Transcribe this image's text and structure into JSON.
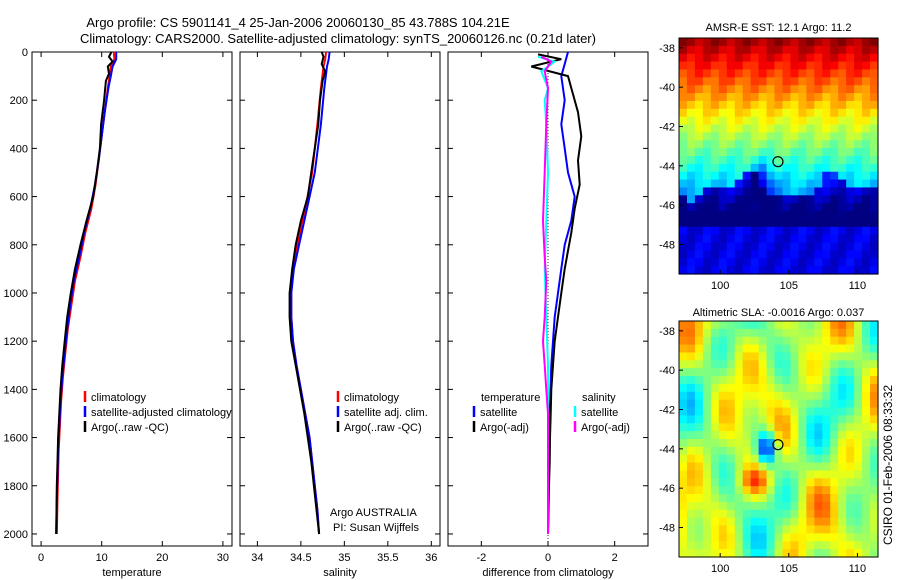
{
  "title_line1": "Argo profile: CS 5901141_4 25-Jan-2006 20060130_85 43.788S 104.21E",
  "title_line2": "Climatology: CARS2000. Satellite-adjusted climatology: synTS_20060126.nc (0.21d later)",
  "side_stamp": "CSIRO 01-Feb-2006 08:33:32",
  "colors": {
    "red": "#ff0000",
    "blue": "#0000ff",
    "black": "#000000",
    "cyan": "#00ffff",
    "magenta": "#ff00ff",
    "navy": "#000090"
  },
  "chart_data": [
    {
      "type": "line",
      "id": "temperature",
      "xlabel": "temperature",
      "xlim": [
        -1.5,
        31.5
      ],
      "xticks": [
        0,
        10,
        20,
        30
      ],
      "ylim": [
        0,
        2050
      ],
      "yticks": [
        0,
        200,
        400,
        600,
        800,
        1000,
        1200,
        1400,
        1600,
        1800,
        2000
      ],
      "y_reversed": true,
      "legend_position": "lower-left",
      "legend": [
        {
          "label": "climatology",
          "color": "#ff0000"
        },
        {
          "label": "satellite-adjusted climatology",
          "color": "#0000ff"
        },
        {
          "label": "Argo(..raw -QC)",
          "color": "#000000"
        }
      ],
      "series": [
        {
          "name": "climatology",
          "color": "#ff0000",
          "points": [
            [
              12.0,
              0
            ],
            [
              12.1,
              30
            ],
            [
              11.5,
              60
            ],
            [
              11.3,
              100
            ],
            [
              11.0,
              150
            ],
            [
              10.5,
              250
            ],
            [
              10.0,
              350
            ],
            [
              9.5,
              450
            ],
            [
              9.0,
              550
            ],
            [
              8.3,
              650
            ],
            [
              7.3,
              750
            ],
            [
              6.5,
              850
            ],
            [
              5.6,
              950
            ],
            [
              5.0,
              1050
            ],
            [
              4.4,
              1150
            ],
            [
              4.0,
              1250
            ],
            [
              3.6,
              1350
            ],
            [
              3.3,
              1450
            ],
            [
              3.1,
              1550
            ],
            [
              2.9,
              1650
            ],
            [
              2.8,
              1750
            ],
            [
              2.7,
              1850
            ],
            [
              2.6,
              2000
            ]
          ]
        },
        {
          "name": "satellite-adjusted climatology",
          "color": "#0000ff",
          "points": [
            [
              12.4,
              0
            ],
            [
              12.4,
              30
            ],
            [
              11.8,
              60
            ],
            [
              11.5,
              100
            ],
            [
              11.1,
              150
            ],
            [
              10.5,
              250
            ],
            [
              10.0,
              350
            ],
            [
              9.5,
              450
            ],
            [
              8.9,
              550
            ],
            [
              8.1,
              650
            ],
            [
              7.1,
              750
            ],
            [
              6.3,
              850
            ],
            [
              5.4,
              950
            ],
            [
              4.8,
              1050
            ],
            [
              4.3,
              1150
            ],
            [
              3.9,
              1250
            ],
            [
              3.5,
              1350
            ],
            [
              3.2,
              1450
            ],
            [
              3.0,
              1550
            ],
            [
              2.8,
              1650
            ],
            [
              2.7,
              1750
            ],
            [
              2.6,
              1850
            ],
            [
              2.5,
              2000
            ]
          ]
        },
        {
          "name": "Argo(..raw -QC)",
          "color": "#000000",
          "points": [
            [
              11.6,
              0
            ],
            [
              11.2,
              20
            ],
            [
              11.8,
              40
            ],
            [
              11.0,
              60
            ],
            [
              11.2,
              90
            ],
            [
              10.7,
              120
            ],
            [
              10.4,
              200
            ],
            [
              9.9,
              300
            ],
            [
              9.7,
              400
            ],
            [
              9.2,
              500
            ],
            [
              8.6,
              600
            ],
            [
              7.5,
              700
            ],
            [
              6.5,
              800
            ],
            [
              5.6,
              900
            ],
            [
              4.9,
              1000
            ],
            [
              4.3,
              1100
            ],
            [
              3.9,
              1200
            ],
            [
              3.5,
              1300
            ],
            [
              3.2,
              1400
            ],
            [
              3.0,
              1500
            ],
            [
              2.8,
              1600
            ],
            [
              2.7,
              1700
            ],
            [
              2.6,
              1800
            ],
            [
              2.5,
              2000
            ]
          ]
        }
      ]
    },
    {
      "type": "line",
      "id": "salinity",
      "xlabel": "salinity",
      "xlim": [
        33.8,
        36.1
      ],
      "xticks": [
        34,
        34.5,
        35,
        35.5,
        36
      ],
      "ylim": [
        0,
        2050
      ],
      "y_reversed": true,
      "legend_position": "lower-right",
      "legend": [
        {
          "label": "climatology",
          "color": "#ff0000"
        },
        {
          "label": "satellite adj. clim.",
          "color": "#0000ff"
        },
        {
          "label": "Argo(..raw -QC)",
          "color": "#000000"
        }
      ],
      "annotation_line1": "Argo AUSTRALIA",
      "annotation_line2": "PI: Susan Wijffels",
      "series": [
        {
          "name": "climatology",
          "color": "#ff0000",
          "points": [
            [
              34.79,
              0
            ],
            [
              34.78,
              30
            ],
            [
              34.76,
              60
            ],
            [
              34.73,
              150
            ],
            [
              34.69,
              300
            ],
            [
              34.63,
              500
            ],
            [
              34.55,
              650
            ],
            [
              34.46,
              800
            ],
            [
              34.41,
              900
            ],
            [
              34.39,
              1000
            ],
            [
              34.39,
              1100
            ],
            [
              34.41,
              1200
            ],
            [
              34.45,
              1300
            ],
            [
              34.5,
              1400
            ],
            [
              34.55,
              1500
            ],
            [
              34.6,
              1600
            ],
            [
              34.63,
              1700
            ],
            [
              34.66,
              1800
            ],
            [
              34.69,
              1900
            ],
            [
              34.71,
              2000
            ]
          ]
        },
        {
          "name": "satellite adj. clim.",
          "color": "#0000ff",
          "points": [
            [
              34.83,
              0
            ],
            [
              34.82,
              30
            ],
            [
              34.8,
              60
            ],
            [
              34.77,
              150
            ],
            [
              34.73,
              300
            ],
            [
              34.66,
              500
            ],
            [
              34.57,
              650
            ],
            [
              34.48,
              800
            ],
            [
              34.42,
              900
            ],
            [
              34.39,
              1000
            ],
            [
              34.39,
              1100
            ],
            [
              34.41,
              1200
            ],
            [
              34.45,
              1300
            ],
            [
              34.5,
              1400
            ],
            [
              34.55,
              1500
            ],
            [
              34.6,
              1600
            ],
            [
              34.63,
              1700
            ],
            [
              34.66,
              1800
            ],
            [
              34.69,
              1900
            ],
            [
              34.71,
              2000
            ]
          ]
        },
        {
          "name": "Argo(..raw -QC)",
          "color": "#000000",
          "points": [
            [
              34.74,
              0
            ],
            [
              34.76,
              20
            ],
            [
              34.74,
              50
            ],
            [
              34.78,
              80
            ],
            [
              34.75,
              120
            ],
            [
              34.72,
              200
            ],
            [
              34.7,
              300
            ],
            [
              34.64,
              450
            ],
            [
              34.58,
              600
            ],
            [
              34.5,
              700
            ],
            [
              34.44,
              800
            ],
            [
              34.4,
              900
            ],
            [
              34.37,
              1000
            ],
            [
              34.37,
              1100
            ],
            [
              34.39,
              1200
            ],
            [
              34.44,
              1300
            ],
            [
              34.49,
              1400
            ],
            [
              34.54,
              1500
            ],
            [
              34.58,
              1600
            ],
            [
              34.62,
              1700
            ],
            [
              34.65,
              1800
            ],
            [
              34.68,
              1900
            ],
            [
              34.71,
              2000
            ]
          ]
        }
      ]
    },
    {
      "type": "line",
      "id": "difference",
      "xlabel": "difference from climatology",
      "xlim": [
        -3.0,
        3.0
      ],
      "xticks": [
        -2,
        0,
        2
      ],
      "ylim": [
        0,
        2050
      ],
      "y_reversed": true,
      "legend_position": "lower-center",
      "legend_headers": [
        "temperature",
        "salinity"
      ],
      "legend": [
        {
          "label": "satellite",
          "color": "#0000ff",
          "column": 0
        },
        {
          "label": "Argo(-adj)",
          "color": "#000000",
          "column": 0
        },
        {
          "label": "satellite",
          "color": "#00ffff",
          "column": 1
        },
        {
          "label": "Argo(-adj)",
          "color": "#ff00ff",
          "column": 1
        }
      ],
      "series": [
        {
          "name": "temperature satellite",
          "color": "#0000ff",
          "points": [
            [
              0.6,
              0
            ],
            [
              0.5,
              50
            ],
            [
              0.4,
              100
            ],
            [
              0.5,
              200
            ],
            [
              0.4,
              300
            ],
            [
              0.5,
              400
            ],
            [
              0.6,
              500
            ],
            [
              0.8,
              600
            ],
            [
              0.7,
              700
            ],
            [
              0.5,
              800
            ],
            [
              0.4,
              900
            ],
            [
              0.3,
              1000
            ],
            [
              0.2,
              1100
            ],
            [
              0.15,
              1200
            ],
            [
              0.1,
              1300
            ],
            [
              0.05,
              1500
            ],
            [
              0.03,
              1700
            ],
            [
              0.0,
              2000
            ]
          ]
        },
        {
          "name": "temperature Argo(-adj)",
          "color": "#000000",
          "points": [
            [
              -0.3,
              10
            ],
            [
              0.4,
              30
            ],
            [
              -0.5,
              60
            ],
            [
              0.6,
              100
            ],
            [
              0.7,
              150
            ],
            [
              0.9,
              250
            ],
            [
              1.0,
              350
            ],
            [
              0.9,
              450
            ],
            [
              0.95,
              550
            ],
            [
              0.8,
              650
            ],
            [
              0.7,
              750
            ],
            [
              0.5,
              900
            ],
            [
              0.4,
              1000
            ],
            [
              0.3,
              1100
            ],
            [
              0.2,
              1200
            ],
            [
              0.15,
              1300
            ],
            [
              0.1,
              1400
            ],
            [
              0.08,
              1500
            ],
            [
              0.06,
              1600
            ],
            [
              0.05,
              1700
            ],
            [
              0.03,
              1800
            ],
            [
              0.0,
              2000
            ]
          ]
        },
        {
          "name": "salinity satellite",
          "color": "#00ffff",
          "points": [
            [
              -0.3,
              20
            ],
            [
              0.2,
              40
            ],
            [
              -0.2,
              80
            ],
            [
              0.0,
              150
            ],
            [
              -0.1,
              200
            ],
            [
              -0.05,
              300
            ],
            [
              0.0,
              500
            ],
            [
              -0.05,
              700
            ],
            [
              -0.1,
              900
            ],
            [
              -0.05,
              1100
            ],
            [
              0.0,
              1300
            ],
            [
              0.0,
              1500
            ],
            [
              0.0,
              1700
            ],
            [
              0.0,
              2000
            ]
          ]
        },
        {
          "name": "salinity Argo(-adj)",
          "color": "#ff00ff",
          "points": [
            [
              -0.2,
              20
            ],
            [
              0.1,
              40
            ],
            [
              -0.1,
              80
            ],
            [
              0.0,
              150
            ],
            [
              -0.05,
              300
            ],
            [
              -0.1,
              500
            ],
            [
              -0.15,
              700
            ],
            [
              -0.1,
              850
            ],
            [
              -0.05,
              950
            ],
            [
              -0.1,
              1100
            ],
            [
              -0.15,
              1200
            ],
            [
              -0.1,
              1300
            ],
            [
              -0.05,
              1400
            ],
            [
              0.0,
              1500
            ],
            [
              0.0,
              1700
            ],
            [
              0.0,
              2000
            ]
          ]
        }
      ]
    },
    {
      "type": "heatmap",
      "id": "sst-map",
      "title": "AMSR-E SST: 12.1  Argo: 11.2",
      "xlim": [
        97,
        111.5
      ],
      "ylim": [
        -49.5,
        -37.5
      ],
      "xticks": [
        100,
        105,
        110
      ],
      "yticks": [
        -38,
        -40,
        -42,
        -44,
        -46,
        -48
      ],
      "marker": {
        "lon": 104.21,
        "lat": -43.788
      }
    },
    {
      "type": "heatmap",
      "id": "sla-map",
      "title": "Altimetric SLA: -0.0016  Argo: 0.037",
      "xlim": [
        97,
        111.5
      ],
      "ylim": [
        -49.5,
        -37.5
      ],
      "xticks": [
        100,
        105,
        110
      ],
      "yticks": [
        -38,
        -40,
        -42,
        -44,
        -46,
        -48
      ],
      "marker": {
        "lon": 104.21,
        "lat": -43.788
      }
    }
  ]
}
